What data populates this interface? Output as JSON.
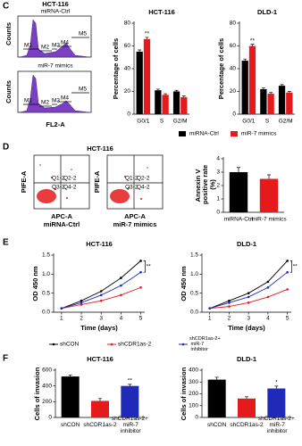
{
  "panel_labels": [
    "C",
    "D",
    "E",
    "F"
  ],
  "flow": {
    "histogram": {
      "title": "HCT-116",
      "panels": [
        "miRNA-Ctrl",
        "miR-7 mimics"
      ],
      "y_label": "Counts",
      "x_label": "FL2-A",
      "gates": [
        "M1",
        "M2",
        "M3",
        "M4",
        "M5"
      ]
    },
    "dotplot": {
      "title": "HCT-116",
      "y_label": "PIFE-A",
      "x_label": "APC-A",
      "panels": [
        "miRNA-Ctrl",
        "miR-7 mimics"
      ],
      "quadrants": [
        "Q1-2",
        "Q2-2",
        "Q3-2",
        "Q4-2"
      ]
    }
  },
  "chart_data": [
    {
      "type": "bar",
      "title": "HCT-116",
      "y_label": "Percentage of cells",
      "categories": [
        "G0/1",
        "S",
        "G2/M"
      ],
      "series": [
        {
          "color": "#000000",
          "values": [
            55,
            21,
            20
          ],
          "errors": [
            1.5,
            1,
            1
          ]
        },
        {
          "color": "#e41a1c",
          "values": [
            66,
            17,
            15
          ],
          "errors": [
            1.5,
            1,
            1
          ]
        }
      ],
      "ylim": [
        0,
        80
      ],
      "yticks": [
        0,
        20,
        40,
        60,
        80
      ],
      "annotation": "**"
    },
    {
      "type": "bar",
      "title": "DLD-1",
      "y_label": "Percentage of cells",
      "categories": [
        "G0/1",
        "S",
        "G2/M"
      ],
      "series": [
        {
          "name": "miRNA-Ctrl",
          "color": "#000000",
          "values": [
            47,
            22,
            25
          ],
          "errors": [
            1.5,
            1,
            1
          ]
        },
        {
          "name": "miR-7 mimics",
          "color": "#e41a1c",
          "values": [
            60,
            18,
            19
          ],
          "errors": [
            1.5,
            1,
            1
          ]
        }
      ],
      "ylim": [
        0,
        80
      ],
      "yticks": [
        0,
        20,
        40,
        60,
        80
      ],
      "annotation": "**"
    },
    {
      "type": "bar",
      "y_label": "Annexin V positive rate (%)",
      "categories": [
        "miRNA-Ctrl",
        "miR-7 mimics"
      ],
      "values": [
        3.0,
        2.5
      ],
      "errors": [
        0.35,
        0.3
      ],
      "colors": [
        "#000000",
        "#e41a1c"
      ],
      "ylim": [
        0,
        4
      ],
      "yticks": [
        0,
        1,
        2,
        3,
        4
      ]
    },
    {
      "type": "line",
      "title": "HCT-116",
      "x_label": "Time (days)",
      "y_label": "OD 450 nm",
      "x": [
        1,
        2,
        3,
        4,
        5
      ],
      "series": [
        {
          "color": "#000000",
          "values": [
            0.1,
            0.3,
            0.55,
            0.9,
            1.35
          ]
        },
        {
          "color": "#e41a1c",
          "values": [
            0.1,
            0.2,
            0.3,
            0.45,
            0.65
          ]
        },
        {
          "color": "#1f2bb8",
          "values": [
            0.1,
            0.25,
            0.45,
            0.7,
            1.05
          ]
        }
      ],
      "xlim": [
        0.6,
        5.2
      ],
      "xticks": [
        1,
        2,
        3,
        4,
        5
      ],
      "ylim": [
        0,
        1.5
      ],
      "yticks": [
        {
          "value": 0,
          "label": "0.0"
        },
        0.5,
        {
          "value": 1,
          "label": "1.0"
        },
        1.5
      ],
      "annotation": "**"
    },
    {
      "type": "line",
      "title": "DLD-1",
      "x_label": "Time (days)",
      "y_label": "OD 450 nm",
      "x": [
        1,
        2,
        3,
        4,
        5
      ],
      "series": [
        {
          "name": "shCON",
          "color": "#000000",
          "values": [
            0.1,
            0.3,
            0.5,
            0.8,
            1.35
          ]
        },
        {
          "name": "shCDR1as-2",
          "color": "#e41a1c",
          "values": [
            0.1,
            0.15,
            0.25,
            0.4,
            0.6
          ]
        },
        {
          "name": "shCDR1as-2+ miR-7 inhibitor",
          "color": "#1f2bb8",
          "values": [
            0.1,
            0.25,
            0.4,
            0.65,
            1.05
          ]
        }
      ],
      "xlim": [
        0.6,
        5.2
      ],
      "xticks": [
        1,
        2,
        3,
        4,
        5
      ],
      "ylim": [
        0,
        1.5
      ],
      "yticks": [
        {
          "value": 0,
          "label": "0.0"
        },
        0.5,
        {
          "value": 1,
          "label": "1.0"
        },
        1.5
      ],
      "annotation": "**"
    },
    {
      "type": "bar",
      "title": "HCT-116",
      "y_label": "Cells of invasion",
      "categories": [
        "shCON",
        "shCDR1as-2",
        "shCDR1as-2+ miR-7 inhibitor"
      ],
      "values": [
        520,
        210,
        400
      ],
      "errors": [
        20,
        30,
        20
      ],
      "colors": [
        "#000000",
        "#e41a1c",
        "#1f2bb8"
      ],
      "ylim": [
        0,
        600
      ],
      "yticks": [
        0,
        200,
        400,
        600
      ],
      "annotation": "**"
    },
    {
      "type": "bar",
      "title": "DLD-1",
      "y_label": "Cells of invasion",
      "categories": [
        "shCON",
        "shCDR1as-2",
        "shCDR1as-2+ miR-7 inhibitor"
      ],
      "values": [
        320,
        160,
        245
      ],
      "errors": [
        20,
        15,
        20
      ],
      "colors": [
        "#000000",
        "#e41a1c",
        "#1f2bb8"
      ],
      "ylim": [
        0,
        400
      ],
      "yticks": [
        0,
        100,
        200,
        300,
        400
      ],
      "annotation": "*"
    }
  ]
}
